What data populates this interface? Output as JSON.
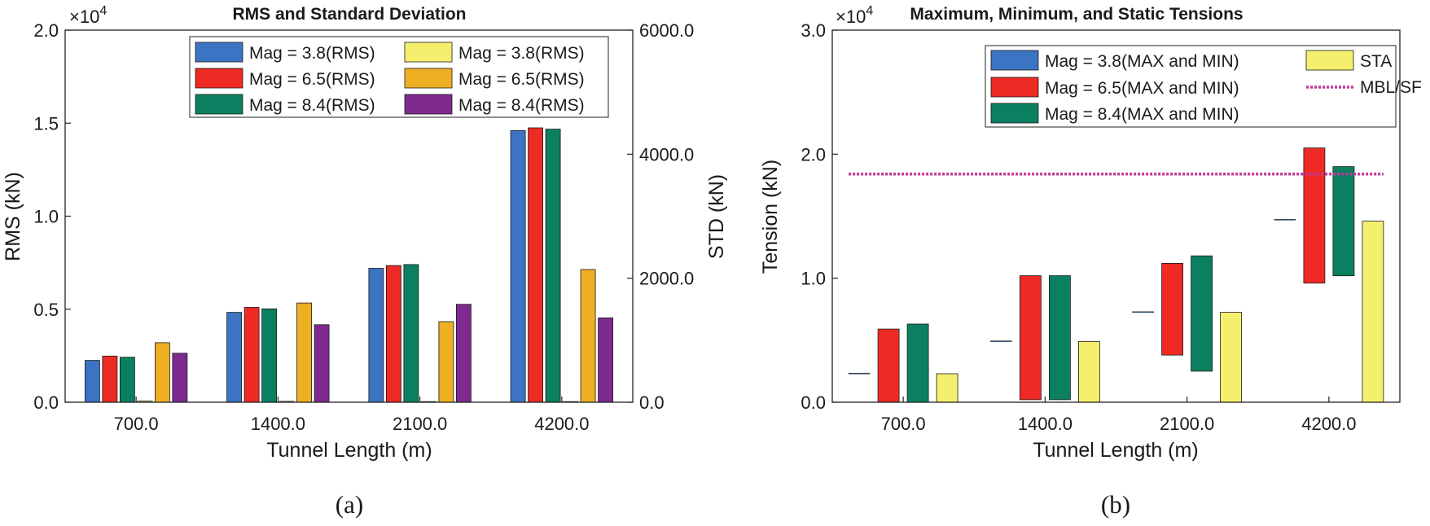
{
  "chart_data": [
    {
      "type": "bar",
      "title": "RMS and Standard Deviation",
      "caption": "(a)",
      "xlabel": "Tunnel Length (m)",
      "ylabel": "RMS (kN)",
      "y2label": "STD (kN)",
      "categories": [
        "700.0",
        "1400.0",
        "2100.0",
        "4200.0"
      ],
      "ylim": [
        0,
        20000
      ],
      "y_exponent_label": "×10",
      "y_exponent_power": "4",
      "yticks": [
        0,
        5000,
        10000,
        15000,
        20000
      ],
      "ytick_labels": [
        "0.0",
        "0.5",
        "1.0",
        "1.5",
        "2.0"
      ],
      "y2lim": [
        0,
        6000
      ],
      "y2ticks": [
        0,
        2000,
        4000,
        6000
      ],
      "y2tick_labels": [
        "0.0",
        "2000.0",
        "4000.0",
        "6000.0"
      ],
      "grid": false,
      "legend_position": "top-right",
      "series": [
        {
          "name": "Mag = 3.8(RMS)",
          "axis": "left",
          "color": "#3b74c2",
          "values": [
            2250,
            4830,
            7200,
            14600
          ]
        },
        {
          "name": "Mag = 6.5(RMS)",
          "axis": "left",
          "color": "#ee2a24",
          "values": [
            2480,
            5100,
            7350,
            14750
          ]
        },
        {
          "name": "Mag = 8.4(RMS)",
          "axis": "left",
          "color": "#0b8060",
          "values": [
            2420,
            5020,
            7400,
            14680
          ]
        },
        {
          "name": "Mag = 3.8(RMS)",
          "axis": "right",
          "color": "#f5ef6e",
          "values": [
            20,
            15,
            10,
            10
          ]
        },
        {
          "name": "Mag = 6.5(RMS)",
          "axis": "right",
          "color": "#eeb022",
          "values": [
            960,
            1600,
            1300,
            2140
          ]
        },
        {
          "name": "Mag = 8.4(RMS)",
          "axis": "right",
          "color": "#7e2a8e",
          "values": [
            790,
            1250,
            1580,
            1360
          ]
        }
      ]
    },
    {
      "type": "bar",
      "title": "Maximum, Minimum, and Static Tensions",
      "caption": "(b)",
      "xlabel": "Tunnel Length (m)",
      "ylabel": "Tension (kN)",
      "categories": [
        "700.0",
        "1400.0",
        "2100.0",
        "4200.0"
      ],
      "ylim": [
        0,
        30000
      ],
      "y_exponent_label": "×10",
      "y_exponent_power": "4",
      "yticks": [
        0,
        10000,
        20000,
        30000
      ],
      "ytick_labels": [
        "0.0",
        "1.0",
        "2.0",
        "3.0"
      ],
      "grid": false,
      "legend_position": "top-right",
      "series": [
        {
          "name": "Mag = 3.8(MAX and MIN)",
          "color": "#3b74c2",
          "min": [
            2300,
            4900,
            7250,
            14700
          ],
          "max": [
            2350,
            4950,
            7300,
            14750
          ]
        },
        {
          "name": "Mag = 6.5(MAX and MIN)",
          "color": "#ee2a24",
          "min": [
            0,
            200,
            3800,
            9600
          ],
          "max": [
            5900,
            10200,
            11200,
            20500
          ]
        },
        {
          "name": "Mag = 8.4(MAX and MIN)",
          "color": "#0b8060",
          "min": [
            0,
            200,
            2500,
            10200
          ],
          "max": [
            6300,
            10200,
            11800,
            19000
          ]
        },
        {
          "name": "STA",
          "color": "#f5ef6e",
          "values": [
            2300,
            4900,
            7250,
            14600
          ]
        }
      ],
      "reference_line": {
        "name": "MBL/SF",
        "value": 18400,
        "color": "#c0399a",
        "from_category": 0,
        "to_category": 3
      }
    }
  ]
}
